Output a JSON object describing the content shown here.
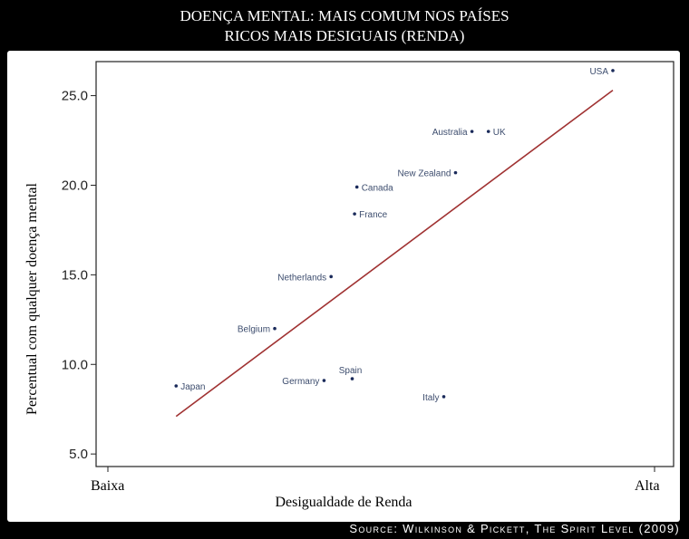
{
  "title_line1": "DOENÇA MENTAL: MAIS COMUM NOS PAÍSES",
  "title_line2": "RICOS MAIS DESIGUAIS (RENDA)",
  "source": "Source: Wilkinson & Pickett, The Spirit Level (2009)",
  "chart_data": {
    "type": "scatter",
    "ylabel": "Percentual com qualquer doença mental",
    "xlabel": "Desigualdade de Renda",
    "xlabel_low": "Baixa",
    "xlabel_high": "Alta",
    "y_ticks": [
      "5.0",
      "10.0",
      "15.0",
      "20.0",
      "25.0"
    ],
    "ylim": [
      4.3,
      26.9
    ],
    "xlim": [
      0,
      100
    ],
    "x_scale": "relative inequality (no numeric ticks)",
    "points": [
      {
        "label": "Japan",
        "x": 7,
        "y": 8.8,
        "label_side": "right"
      },
      {
        "label": "Belgium",
        "x": 28,
        "y": 12.0,
        "label_side": "left"
      },
      {
        "label": "Netherlands",
        "x": 40,
        "y": 14.9,
        "label_side": "left"
      },
      {
        "label": "Germany",
        "x": 38.5,
        "y": 9.1,
        "label_side": "left"
      },
      {
        "label": "Spain",
        "x": 44.5,
        "y": 9.2,
        "label_side": "above"
      },
      {
        "label": "Canada",
        "x": 45.5,
        "y": 19.9,
        "label_side": "right"
      },
      {
        "label": "France",
        "x": 45,
        "y": 18.4,
        "label_side": "right"
      },
      {
        "label": "Italy",
        "x": 64,
        "y": 8.2,
        "label_side": "left"
      },
      {
        "label": "New Zealand",
        "x": 66.5,
        "y": 20.7,
        "label_side": "left"
      },
      {
        "label": "Australia",
        "x": 70,
        "y": 23.0,
        "label_side": "left"
      },
      {
        "label": "UK",
        "x": 73.5,
        "y": 23.0,
        "label_side": "right"
      },
      {
        "label": "USA",
        "x": 100,
        "y": 26.4,
        "label_side": "left"
      }
    ],
    "trendline": {
      "x": [
        7,
        100
      ],
      "y": [
        7.1,
        25.3
      ],
      "color": "#a03232"
    },
    "point_color": "#1a2a5a",
    "label_color": "#3d4d6e",
    "grid": false
  }
}
